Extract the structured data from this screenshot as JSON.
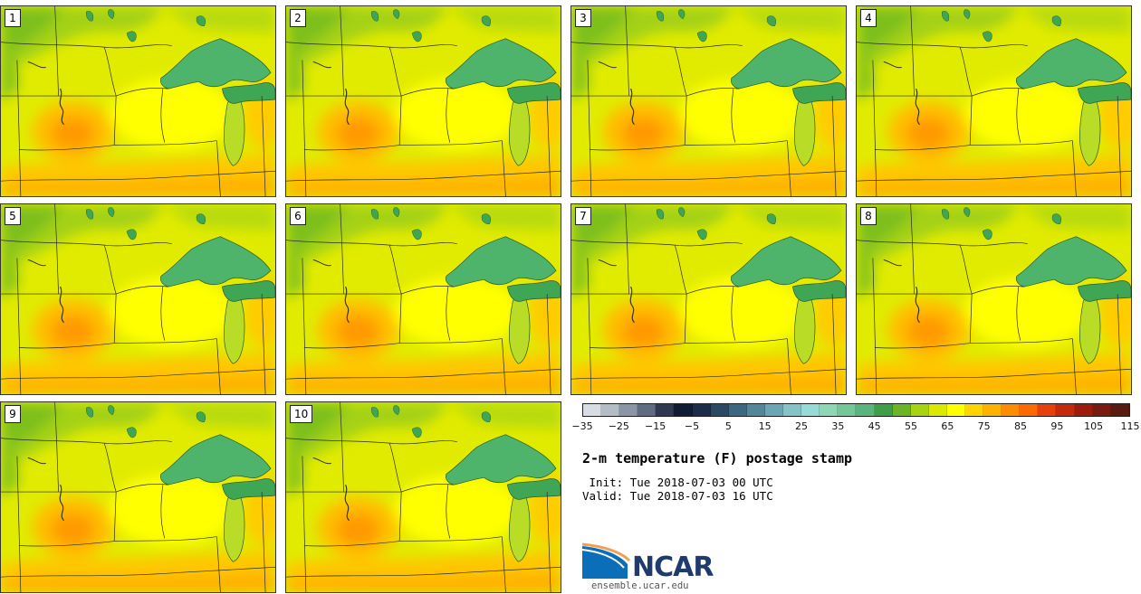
{
  "panels": [
    {
      "label": "1"
    },
    {
      "label": "2"
    },
    {
      "label": "3"
    },
    {
      "label": "4"
    },
    {
      "label": "5"
    },
    {
      "label": "6"
    },
    {
      "label": "7"
    },
    {
      "label": "8"
    },
    {
      "label": "9"
    },
    {
      "label": "10"
    }
  ],
  "colorbar": {
    "colors": [
      "#d8dde3",
      "#b4bcc6",
      "#8a96a6",
      "#5f6c82",
      "#2f3a52",
      "#101c33",
      "#1b2d48",
      "#2a4a64",
      "#3b6780",
      "#52879a",
      "#6aa7b4",
      "#84c3c8",
      "#96dcd6",
      "#8dd6b6",
      "#74c798",
      "#58b57c",
      "#3f9f48",
      "#6bb425",
      "#a6d410",
      "#dbe800",
      "#ffff00",
      "#ffd400",
      "#ffb300",
      "#ff8c00",
      "#ff6a00",
      "#e8400a",
      "#c42a0c",
      "#9e1c0e",
      "#7a1a10",
      "#5b1a10"
    ],
    "tick_labels": [
      "−35",
      "−25",
      "−15",
      "−5",
      "5",
      "15",
      "25",
      "35",
      "45",
      "55",
      "65",
      "75",
      "85",
      "95",
      "105",
      "115"
    ]
  },
  "title": "2-m temperature (F) postage stamp",
  "init": " Init: Tue 2018-07-03 00 UTC",
  "valid": "Valid: Tue 2018-07-03 16 UTC",
  "logo": {
    "text": "NCAR",
    "icon": "ncar-swoosh-icon"
  },
  "site": "ensemble.ucar.edu"
}
